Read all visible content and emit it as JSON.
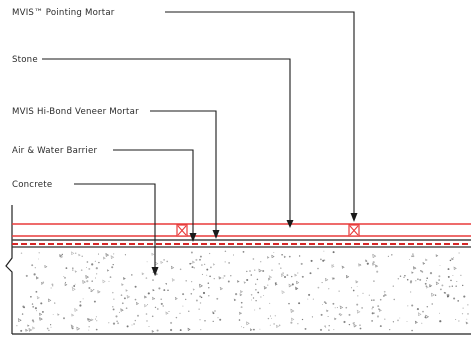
{
  "diagram": {
    "labels": {
      "pointing_mortar": "MVIS™ Pointing Mortar",
      "stone": "Stone",
      "hi_bond_mortar": "MVIS Hi-Bond Veneer Mortar",
      "air_water_barrier": "Air & Water Barrier",
      "concrete": "Concrete"
    },
    "colors": {
      "stone_layer": "#e83a3a",
      "barrier_dash": "#d62828",
      "leader": "#1a1a1a",
      "speckle": "#6b6b6b",
      "text": "#2b2b2b"
    }
  }
}
